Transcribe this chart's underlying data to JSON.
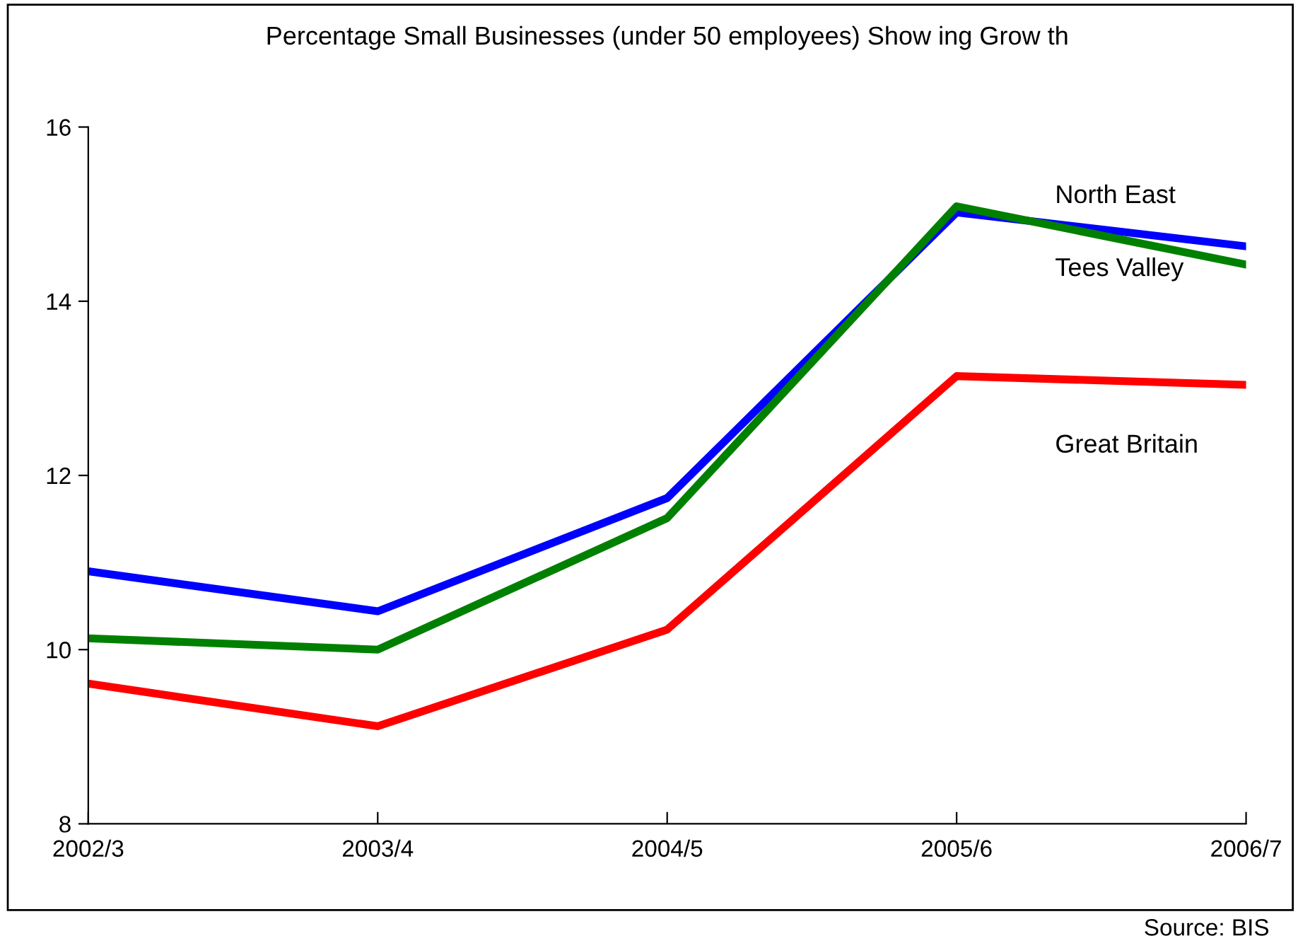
{
  "chart_data": {
    "type": "line",
    "title": "Percentage Small Businesses (under 50 employees) Show ing Grow th",
    "categories": [
      "2002/3",
      "2003/4",
      "2004/5",
      "2005/6",
      "2006/7"
    ],
    "series": [
      {
        "name": "North East",
        "color": "#0000ff",
        "values": [
          10.9,
          10.44,
          11.74,
          15.02,
          14.63
        ]
      },
      {
        "name": "Tees Valley",
        "color": "#008000",
        "values": [
          10.13,
          10.0,
          11.51,
          15.09,
          14.42
        ]
      },
      {
        "name": "Great Britain",
        "color": "#ff0000",
        "values": [
          9.61,
          9.12,
          10.23,
          13.14,
          13.04
        ]
      }
    ],
    "ylim": [
      8,
      16
    ],
    "yticks": [
      8,
      10,
      12,
      14,
      16
    ],
    "grid": false,
    "legend": false,
    "marker": "none",
    "line_style": "solid",
    "annotations": [
      "Source: BIS"
    ]
  }
}
